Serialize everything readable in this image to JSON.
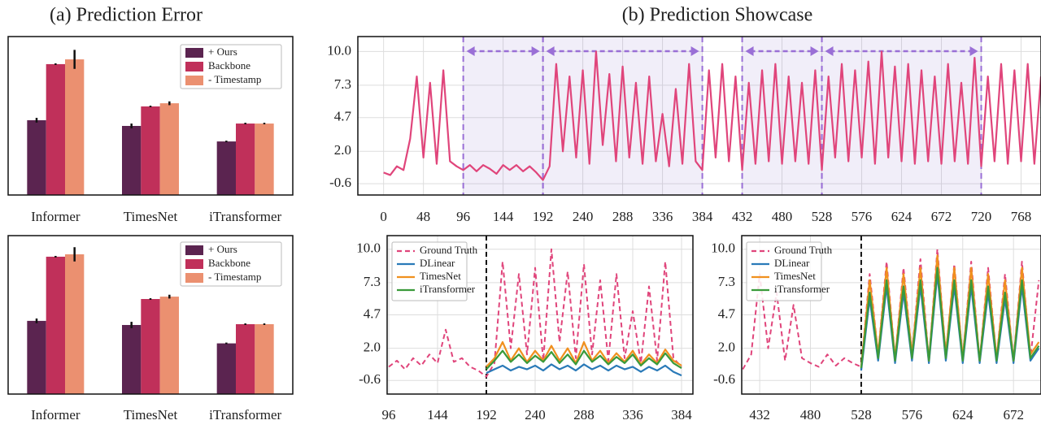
{
  "figure_titles": [
    "(a) Prediction Error",
    "(b) Prediction Showcase"
  ],
  "chart_data": [
    {
      "type": "bar",
      "categories": [
        "Informer",
        "TimesNet",
        "iTransformer"
      ],
      "ylim": [
        0,
        10
      ],
      "series": [
        {
          "name": "+ Ours",
          "color": "#5b2450",
          "values": [
            4.72,
            4.36,
            3.38
          ],
          "errors": [
            0.15,
            0.15,
            0.05
          ]
        },
        {
          "name": "Backbone",
          "color": "#c0305a",
          "values": [
            8.26,
            5.59,
            4.51
          ],
          "errors": [
            0.05,
            0.05,
            0.05
          ]
        },
        {
          "name": "- Timestamp",
          "color": "#eb9070",
          "values": [
            8.56,
            5.79,
            4.51
          ],
          "errors": [
            0.6,
            0.12,
            0.05
          ]
        }
      ]
    },
    {
      "type": "line",
      "xlim": [
        -31,
        792
      ],
      "ylim": [
        -1.5,
        11.2
      ],
      "grid": true,
      "xticks": [
        0,
        48,
        96,
        144,
        192,
        240,
        288,
        336,
        384,
        432,
        480,
        528,
        576,
        624,
        672,
        720,
        768
      ],
      "yticks": [
        -0.6,
        {
          "value": 2,
          "label": "2.0"
        },
        4.7,
        7.3,
        {
          "value": 10,
          "label": "10.0"
        }
      ],
      "highlight_spans": [
        [
          96,
          192
        ],
        [
          192,
          384
        ],
        [
          432,
          528
        ],
        [
          528,
          720
        ]
      ],
      "series": [
        {
          "color": "#e0457b",
          "x": [
            0,
            8,
            16,
            24,
            32,
            40,
            48,
            56,
            64,
            72,
            80,
            88,
            96,
            104,
            112,
            120,
            128,
            136,
            144,
            152,
            160,
            168,
            176,
            184,
            192,
            200,
            208,
            216,
            224,
            232,
            240,
            248,
            256,
            264,
            272,
            280,
            288,
            296,
            304,
            312,
            320,
            328,
            336,
            344,
            352,
            360,
            368,
            376,
            384,
            392,
            400,
            408,
            416,
            424,
            432,
            440,
            448,
            456,
            464,
            472,
            480,
            488,
            496,
            504,
            512,
            520,
            528,
            536,
            544,
            552,
            560,
            568,
            576,
            584,
            592,
            600,
            608,
            616,
            624,
            632,
            640,
            648,
            656,
            664,
            672,
            680,
            688,
            696,
            704,
            712,
            720,
            728,
            736,
            744,
            752,
            760,
            768,
            776,
            784,
            792
          ],
          "values": [
            0.3,
            0.1,
            0.8,
            0.5,
            3.0,
            8.0,
            1.5,
            7.5,
            1.0,
            8.5,
            1.2,
            0.8,
            0.5,
            0.9,
            0.4,
            0.9,
            0.6,
            0.2,
            0.9,
            0.5,
            0.9,
            0.4,
            0.8,
            0.3,
            -0.3,
            0.8,
            9.0,
            2.0,
            8.0,
            1.5,
            8.5,
            1.0,
            10.0,
            2.5,
            8.2,
            1.2,
            8.8,
            1.5,
            7.5,
            1.0,
            8.0,
            1.2,
            5.0,
            0.8,
            7.0,
            1.0,
            9.0,
            1.2,
            0.5,
            8.5,
            1.5,
            9.0,
            1.2,
            8.0,
            0.5,
            7.5,
            1.0,
            8.5,
            1.2,
            9.0,
            1.0,
            8.0,
            1.2,
            7.5,
            1.0,
            8.5,
            0.5,
            8.0,
            1.5,
            9.0,
            1.2,
            8.5,
            1.5,
            9.2,
            1.0,
            10.0,
            1.5,
            8.8,
            1.2,
            9.0,
            1.0,
            8.5,
            1.2,
            8.0,
            1.0,
            9.0,
            1.2,
            7.5,
            1.0,
            9.5,
            0.8,
            8.0,
            1.2,
            9.0,
            1.0,
            8.5,
            1.2,
            9.0,
            1.0,
            8.0
          ]
        }
      ]
    },
    {
      "type": "bar",
      "categories": [
        "Informer",
        "TimesNet",
        "iTransformer"
      ],
      "ylim": [
        0,
        10
      ],
      "series": [
        {
          "name": "+ Ours",
          "color": "#5b2450",
          "values": [
            4.62,
            4.36,
            3.2
          ],
          "errors": [
            0.15,
            0.2,
            0.05
          ]
        },
        {
          "name": "Backbone",
          "color": "#c0305a",
          "values": [
            8.67,
            6.0,
            4.41
          ],
          "errors": [
            0.05,
            0.05,
            0.05
          ]
        },
        {
          "name": "- Timestamp",
          "color": "#eb9070",
          "values": [
            8.82,
            6.15,
            4.41
          ],
          "errors": [
            0.45,
            0.12,
            0.05
          ]
        }
      ]
    },
    {
      "type": "line",
      "xlim": [
        94.4,
        395.2
      ],
      "ylim": [
        -1.7,
        11.1
      ],
      "grid": true,
      "forecast_start": 192,
      "xticks": [
        96,
        144,
        192,
        240,
        288,
        336,
        384
      ],
      "yticks": [
        -0.6,
        {
          "value": 2,
          "label": "2.0"
        },
        4.7,
        7.3,
        {
          "value": 10,
          "label": "10.0"
        }
      ],
      "series": [
        {
          "name": "Ground Truth",
          "color": "#e0457b",
          "line_style": "dashed",
          "x": [
            96,
            104,
            112,
            120,
            128,
            136,
            144,
            152,
            160,
            168,
            176,
            184,
            192,
            200,
            208,
            216,
            224,
            232,
            240,
            248,
            256,
            264,
            272,
            280,
            288,
            296,
            304,
            312,
            320,
            328,
            336,
            344,
            352,
            360,
            368,
            376,
            384
          ],
          "values": [
            0.5,
            1.0,
            0.3,
            1.2,
            0.6,
            1.5,
            0.8,
            3.5,
            0.9,
            1.2,
            0.5,
            0.2,
            -0.3,
            0.8,
            9.0,
            2.0,
            8.0,
            1.5,
            8.5,
            1.0,
            10.0,
            2.5,
            8.2,
            1.2,
            8.8,
            1.5,
            7.5,
            1.0,
            8.0,
            1.2,
            5.0,
            0.8,
            7.0,
            1.0,
            9.0,
            1.2,
            0.5
          ]
        },
        {
          "name": "DLinear",
          "color": "#2a7ab8",
          "x": [
            192,
            200,
            208,
            216,
            224,
            232,
            240,
            248,
            256,
            264,
            272,
            280,
            288,
            296,
            304,
            312,
            320,
            328,
            336,
            344,
            352,
            360,
            368,
            376,
            384
          ],
          "values": [
            0.0,
            0.3,
            0.6,
            0.2,
            0.5,
            0.3,
            0.6,
            0.2,
            0.7,
            0.3,
            0.6,
            0.2,
            0.7,
            0.3,
            0.6,
            0.2,
            0.6,
            0.3,
            0.5,
            0.1,
            0.5,
            0.2,
            0.6,
            0.1,
            -0.2
          ]
        },
        {
          "name": "TimesNet",
          "color": "#f0901e",
          "x": [
            192,
            200,
            208,
            216,
            224,
            232,
            240,
            248,
            256,
            264,
            272,
            280,
            288,
            296,
            304,
            312,
            320,
            328,
            336,
            344,
            352,
            360,
            368,
            376,
            384
          ],
          "values": [
            0.5,
            1.2,
            2.5,
            1.0,
            2.0,
            0.9,
            1.8,
            1.0,
            2.2,
            1.0,
            2.0,
            0.8,
            2.5,
            1.0,
            1.8,
            0.8,
            1.6,
            0.9,
            1.8,
            0.7,
            1.5,
            0.8,
            1.9,
            1.0,
            0.6
          ]
        },
        {
          "name": "iTransformer",
          "color": "#3a9a3a",
          "x": [
            192,
            200,
            208,
            216,
            224,
            232,
            240,
            248,
            256,
            264,
            272,
            280,
            288,
            296,
            304,
            312,
            320,
            328,
            336,
            344,
            352,
            360,
            368,
            376,
            384
          ],
          "values": [
            0.3,
            1.0,
            1.8,
            0.9,
            1.5,
            0.8,
            1.4,
            0.9,
            1.7,
            0.8,
            1.5,
            0.7,
            1.8,
            0.9,
            1.4,
            0.7,
            1.3,
            0.8,
            1.5,
            0.6,
            1.2,
            0.7,
            1.6,
            0.8,
            0.4
          ]
        }
      ]
    },
    {
      "type": "line",
      "xlim": [
        415,
        698
      ],
      "ylim": [
        -1.7,
        11.1
      ],
      "grid": true,
      "forecast_start": 528,
      "xticks": [
        432,
        480,
        528,
        576,
        624,
        672
      ],
      "yticks": [
        -0.6,
        {
          "value": 2,
          "label": "2.0"
        },
        4.7,
        7.3,
        {
          "value": 10,
          "label": "10.0"
        }
      ],
      "series": [
        {
          "name": "Ground Truth",
          "color": "#e0457b",
          "line_style": "dashed",
          "x": [
            416,
            424,
            432,
            440,
            448,
            456,
            464,
            472,
            480,
            488,
            496,
            504,
            512,
            520,
            528,
            536,
            544,
            552,
            560,
            568,
            576,
            584,
            592,
            600,
            608,
            616,
            624,
            632,
            640,
            648,
            656,
            664,
            672,
            680,
            688,
            696
          ],
          "values": [
            0.3,
            1.5,
            8.0,
            2.0,
            6.5,
            1.0,
            5.5,
            1.2,
            0.8,
            0.5,
            1.5,
            0.6,
            1.2,
            0.8,
            0.5,
            8.0,
            1.5,
            9.0,
            1.2,
            8.5,
            1.5,
            9.2,
            1.0,
            10.0,
            1.5,
            8.8,
            1.2,
            9.0,
            1.0,
            8.5,
            1.2,
            8.0,
            1.0,
            9.0,
            1.2,
            7.5
          ]
        },
        {
          "name": "DLinear",
          "color": "#2a7ab8",
          "x": [
            528,
            536,
            544,
            552,
            560,
            568,
            576,
            584,
            592,
            600,
            608,
            616,
            624,
            632,
            640,
            648,
            656,
            664,
            672,
            680,
            688,
            696
          ],
          "values": [
            0.2,
            6.0,
            1.0,
            7.0,
            0.8,
            6.5,
            1.0,
            7.0,
            0.8,
            8.0,
            1.0,
            7.0,
            0.8,
            7.0,
            0.8,
            6.5,
            0.8,
            6.0,
            0.8,
            7.0,
            1.0,
            2.0
          ]
        },
        {
          "name": "TimesNet",
          "color": "#f0901e",
          "x": [
            528,
            536,
            544,
            552,
            560,
            568,
            576,
            584,
            592,
            600,
            608,
            616,
            624,
            632,
            640,
            648,
            656,
            664,
            672,
            680,
            688,
            696
          ],
          "values": [
            0.5,
            7.5,
            1.5,
            8.5,
            1.2,
            8.0,
            1.5,
            8.5,
            1.0,
            9.5,
            1.5,
            8.5,
            1.2,
            8.5,
            1.0,
            8.0,
            1.2,
            7.5,
            1.0,
            8.5,
            1.5,
            2.5
          ]
        },
        {
          "name": "iTransformer",
          "color": "#3a9a3a",
          "x": [
            528,
            536,
            544,
            552,
            560,
            568,
            576,
            584,
            592,
            600,
            608,
            616,
            624,
            632,
            640,
            648,
            656,
            664,
            672,
            680,
            688,
            696
          ],
          "values": [
            0.4,
            6.5,
            1.2,
            7.5,
            1.0,
            7.0,
            1.2,
            7.5,
            1.0,
            8.5,
            1.2,
            7.5,
            1.0,
            7.5,
            1.0,
            7.0,
            1.0,
            6.5,
            1.0,
            7.5,
            1.2,
            2.2
          ]
        }
      ]
    }
  ]
}
